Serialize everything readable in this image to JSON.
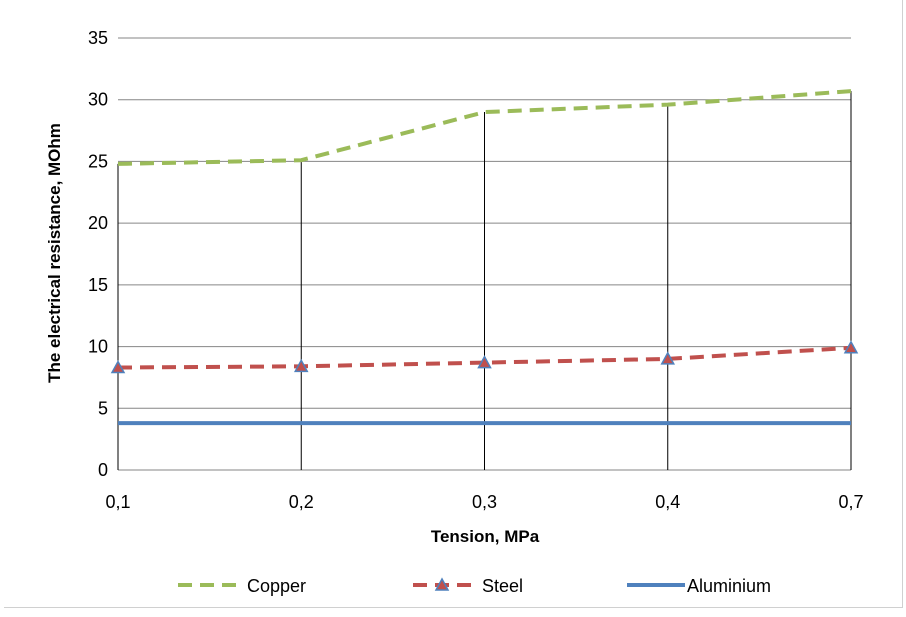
{
  "chart_data": {
    "type": "line",
    "categories": [
      "0,1",
      "0,2",
      "0,3",
      "0,4",
      "0,7"
    ],
    "xlabel": "Tension, MPa",
    "ylabel": "The electrical resistance, MOhm",
    "ylim": [
      0,
      35
    ],
    "yticks": [
      "0",
      "5",
      "10",
      "15",
      "20",
      "25",
      "30",
      "35"
    ],
    "grid": true,
    "legend_position": "bottom",
    "series": [
      {
        "name": "Copper",
        "values": [
          24.8,
          25.1,
          29.0,
          29.6,
          30.7
        ],
        "color": "#9bbb59",
        "style": "dashed"
      },
      {
        "name": "Steel",
        "values": [
          8.3,
          8.4,
          8.7,
          9.0,
          9.9
        ],
        "color": "#c0504d",
        "style": "dashed",
        "marker": "triangle",
        "marker_color": "#4f81bd"
      },
      {
        "name": "Aluminium",
        "values": [
          3.8,
          3.8,
          3.8,
          3.8,
          3.8
        ],
        "color": "#4f81bd",
        "style": "solid"
      }
    ]
  }
}
